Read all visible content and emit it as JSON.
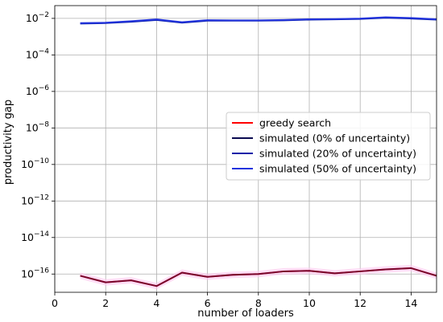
{
  "chart_data": {
    "type": "line",
    "title": "",
    "xlabel": "number of loaders",
    "ylabel": "productivity gap",
    "y_scale": "log",
    "xlim": [
      0,
      15
    ],
    "ylim": [
      1e-17,
      0.05
    ],
    "x_ticks": [
      0,
      2,
      4,
      6,
      8,
      10,
      12,
      14
    ],
    "y_tick_exponents": [
      -16,
      -14,
      -12,
      -10,
      -8,
      -6,
      -4,
      -2
    ],
    "grid": true,
    "legend_position": "center-right",
    "x": [
      1,
      2,
      3,
      4,
      5,
      6,
      7,
      8,
      9,
      10,
      11,
      12,
      13,
      14,
      15
    ],
    "series": [
      {
        "name": "greedy search",
        "color": "#ff0000",
        "values": [
          8e-17,
          3.5e-17,
          4.5e-17,
          2.2e-17,
          1.2e-16,
          7e-17,
          9e-17,
          1e-16,
          1.4e-16,
          1.5e-16,
          1.1e-16,
          1.4e-16,
          1.8e-16,
          2.1e-16,
          8e-17
        ]
      },
      {
        "name": "simulated (0% of uncertainty)",
        "color": "#0a0a50",
        "values": [
          8e-17,
          3.5e-17,
          4.5e-17,
          2.2e-17,
          1.2e-16,
          7e-17,
          9e-17,
          1e-16,
          1.4e-16,
          1.5e-16,
          1.1e-16,
          1.4e-16,
          1.8e-16,
          2.1e-16,
          8e-17
        ]
      },
      {
        "name": "simulated (20% of uncertainty)",
        "color": "#0b1fa8",
        "values": [
          0.0052,
          0.0055,
          0.0065,
          0.0082,
          0.0058,
          0.0075,
          0.0075,
          0.0075,
          0.0078,
          0.0085,
          0.0088,
          0.0093,
          0.0108,
          0.0098,
          0.0085
        ]
      },
      {
        "name": "simulated (50% of uncertainty)",
        "color": "#2233dd",
        "values": [
          0.0055,
          0.0058,
          0.007,
          0.0088,
          0.0062,
          0.008,
          0.0078,
          0.0078,
          0.0082,
          0.009,
          0.0092,
          0.0098,
          0.0115,
          0.0105,
          0.009
        ]
      }
    ],
    "band_color": "#ffc8f0"
  }
}
